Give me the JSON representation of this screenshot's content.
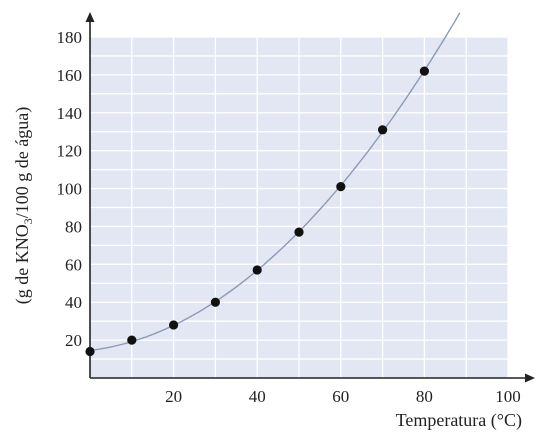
{
  "chart_data": {
    "type": "scatter",
    "xlabel": "Temperatura (°C)",
    "ylabel": {
      "pre": "(g de KNO",
      "sub": "3",
      "post": "/100 g de água)"
    },
    "xlim": [
      0,
      100
    ],
    "ylim": [
      0,
      180
    ],
    "x_ticks": [
      20,
      40,
      60,
      80,
      100
    ],
    "y_ticks": [
      20,
      40,
      60,
      80,
      100,
      120,
      140,
      160,
      180
    ],
    "grid": true,
    "series": [
      {
        "points": [
          {
            "x": 0,
            "y": 14
          },
          {
            "x": 10,
            "y": 20
          },
          {
            "x": 20,
            "y": 28
          },
          {
            "x": 30,
            "y": 40
          },
          {
            "x": 40,
            "y": 57
          },
          {
            "x": 50,
            "y": 77
          },
          {
            "x": 60,
            "y": 101
          },
          {
            "x": 70,
            "y": 131
          },
          {
            "x": 80,
            "y": 162
          }
        ],
        "curve": "smooth fit through points, extends beyond plot top",
        "marker_color": "#111111",
        "line_color": "#8a9bb5"
      }
    ],
    "colors": {
      "plot_background": "#e3e7f3",
      "grid": "#ffffff",
      "axis": "#222222"
    }
  }
}
